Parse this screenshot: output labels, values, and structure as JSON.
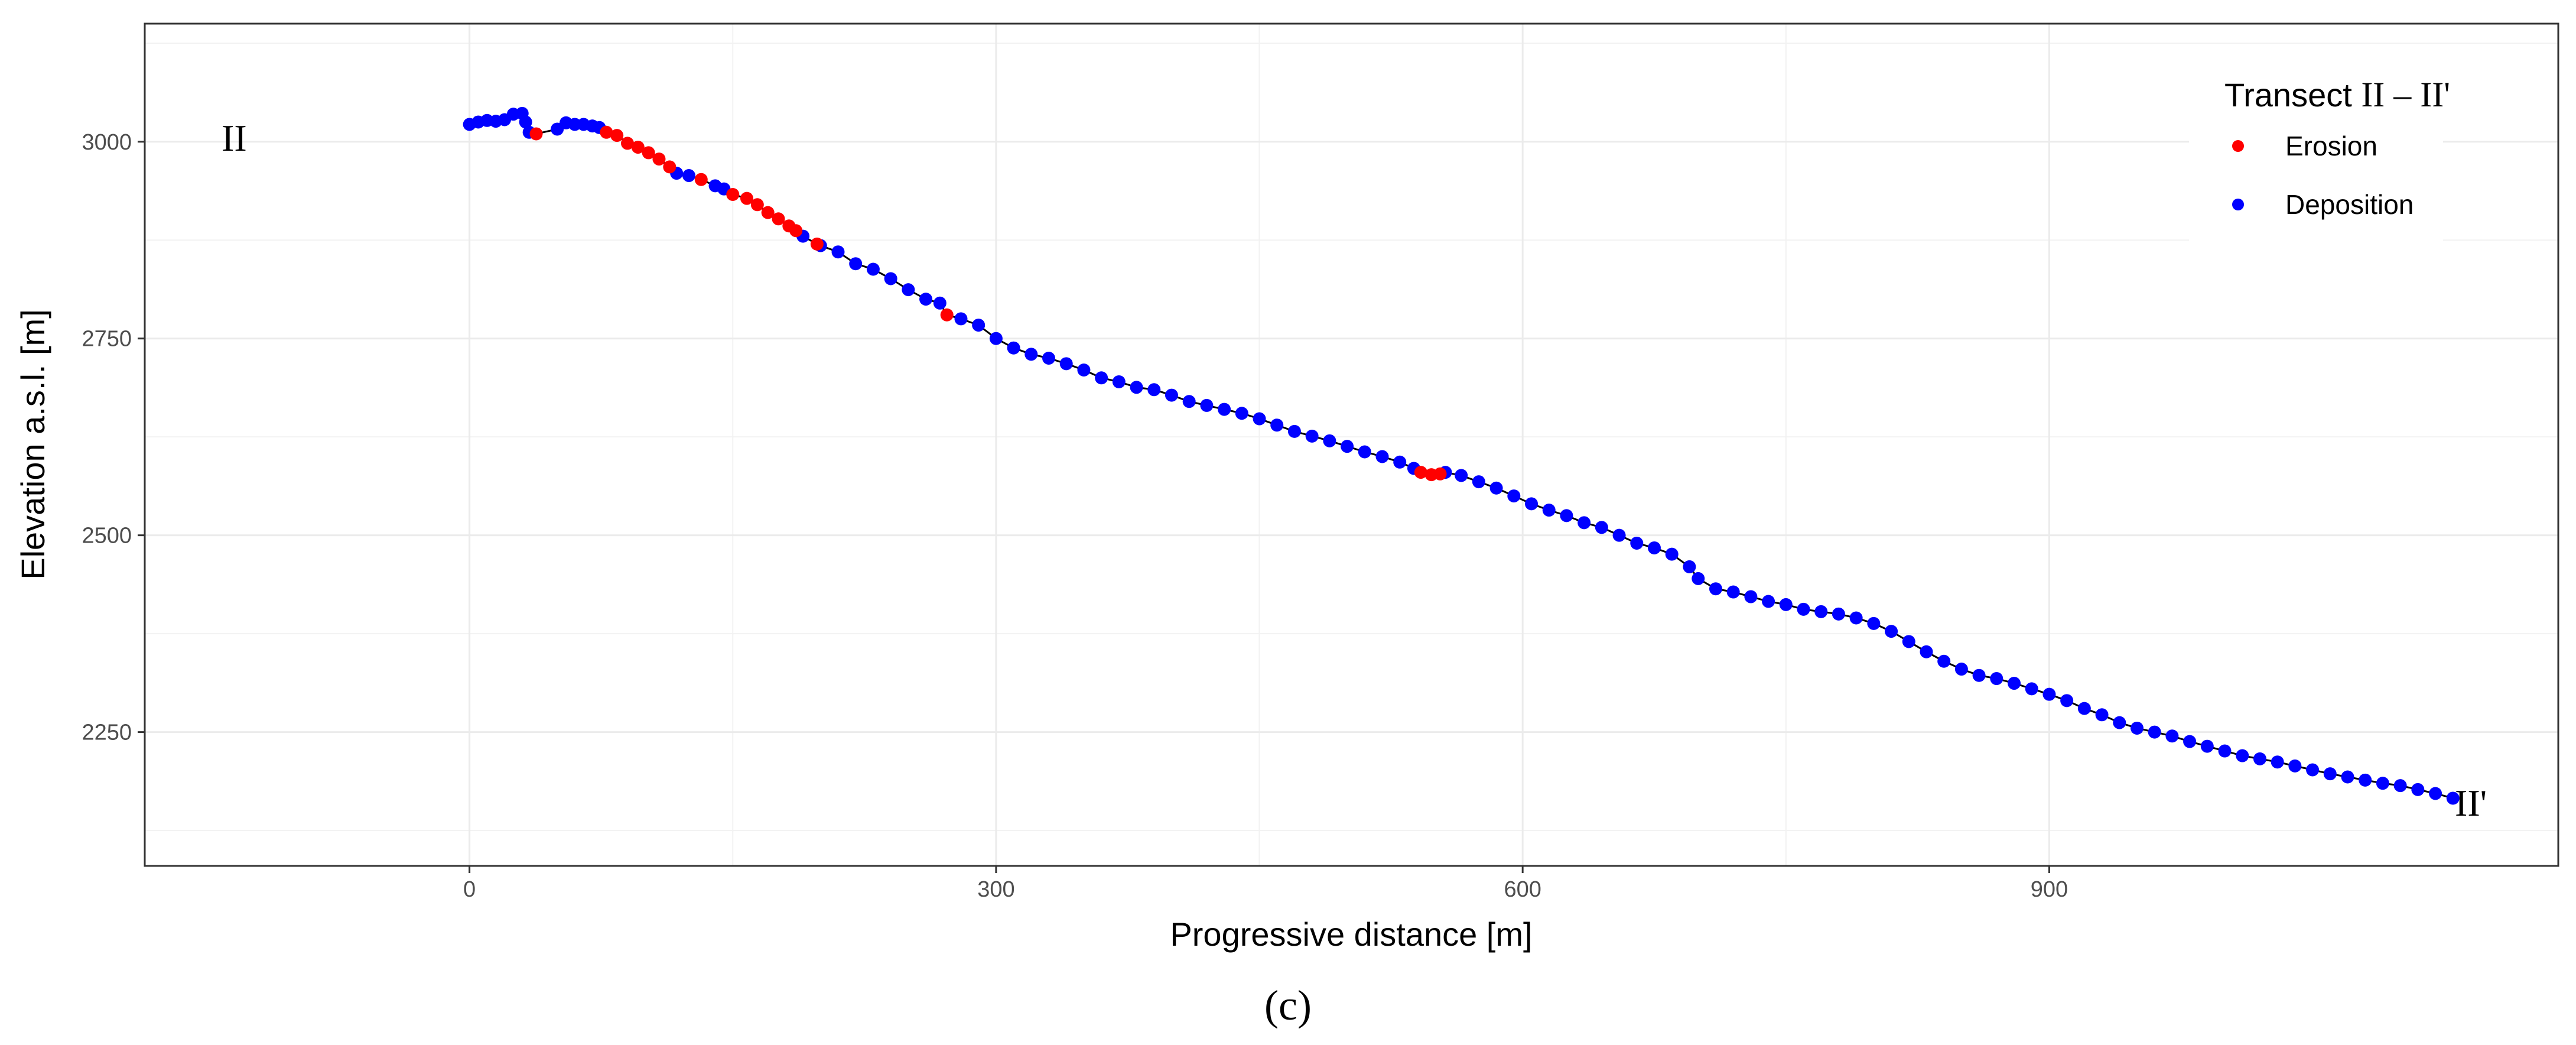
{
  "chart_data": {
    "type": "scatter",
    "xlabel": "Progressive distance [m]",
    "ylabel": "Elevation a.s.l. [m]",
    "xlim": [
      -185,
      1190
    ],
    "ylim": [
      2080,
      3150
    ],
    "xticks": [
      0,
      300,
      600,
      900
    ],
    "yticks": [
      2250,
      2500,
      2750,
      3000
    ],
    "x_tick_labels": [
      "0",
      "300",
      "600",
      "900"
    ],
    "y_tick_labels": [
      "2250",
      "2500",
      "2750",
      "3000"
    ],
    "grid": true,
    "legend": {
      "title_prefix": "Transect ",
      "title_roman": "II – II'",
      "position": "top-right",
      "entries": [
        {
          "label": "Erosion",
          "color": "#ff0000"
        },
        {
          "label": "Deposition",
          "color": "#0000ff"
        }
      ]
    },
    "start_label": "II",
    "end_label": "II'",
    "caption": "(c)",
    "colors": {
      "erosion": "#ff0000",
      "deposition": "#0000ff",
      "line": "#000000"
    },
    "series": [
      {
        "name": "Deposition",
        "color": "#0000ff",
        "points": [
          [
            0,
            3022
          ],
          [
            5,
            3025
          ],
          [
            10,
            3027
          ],
          [
            15,
            3026
          ],
          [
            20,
            3028
          ],
          [
            25,
            3035
          ],
          [
            30,
            3036
          ],
          [
            32,
            3025
          ],
          [
            34,
            3012
          ],
          [
            50,
            3016
          ],
          [
            55,
            3024
          ],
          [
            60,
            3022
          ],
          [
            65,
            3022
          ],
          [
            70,
            3020
          ],
          [
            74,
            3018
          ],
          [
            118,
            2960
          ],
          [
            125,
            2957
          ],
          [
            140,
            2944
          ],
          [
            145,
            2940
          ],
          [
            190,
            2880
          ],
          [
            200,
            2868
          ],
          [
            210,
            2860
          ],
          [
            220,
            2845
          ],
          [
            230,
            2838
          ],
          [
            240,
            2826
          ],
          [
            250,
            2812
          ],
          [
            260,
            2800
          ],
          [
            268,
            2795
          ],
          [
            280,
            2775
          ],
          [
            290,
            2767
          ],
          [
            300,
            2750
          ],
          [
            310,
            2738
          ],
          [
            320,
            2730
          ],
          [
            330,
            2725
          ],
          [
            340,
            2718
          ],
          [
            350,
            2710
          ],
          [
            360,
            2700
          ],
          [
            370,
            2695
          ],
          [
            380,
            2688
          ],
          [
            390,
            2685
          ],
          [
            400,
            2678
          ],
          [
            410,
            2670
          ],
          [
            420,
            2665
          ],
          [
            430,
            2660
          ],
          [
            440,
            2655
          ],
          [
            450,
            2648
          ],
          [
            460,
            2640
          ],
          [
            470,
            2632
          ],
          [
            480,
            2626
          ],
          [
            490,
            2620
          ],
          [
            500,
            2613
          ],
          [
            510,
            2606
          ],
          [
            520,
            2600
          ],
          [
            530,
            2593
          ],
          [
            538,
            2585
          ],
          [
            556,
            2580
          ],
          [
            565,
            2576
          ],
          [
            575,
            2568
          ],
          [
            585,
            2560
          ],
          [
            595,
            2550
          ],
          [
            605,
            2540
          ],
          [
            615,
            2532
          ],
          [
            625,
            2525
          ],
          [
            635,
            2516
          ],
          [
            645,
            2510
          ],
          [
            655,
            2500
          ],
          [
            665,
            2490
          ],
          [
            675,
            2484
          ],
          [
            685,
            2476
          ],
          [
            695,
            2460
          ],
          [
            700,
            2445
          ],
          [
            710,
            2432
          ],
          [
            720,
            2428
          ],
          [
            730,
            2422
          ],
          [
            740,
            2416
          ],
          [
            750,
            2412
          ],
          [
            760,
            2406
          ],
          [
            770,
            2403
          ],
          [
            780,
            2400
          ],
          [
            790,
            2395
          ],
          [
            800,
            2388
          ],
          [
            810,
            2378
          ],
          [
            820,
            2365
          ],
          [
            830,
            2352
          ],
          [
            840,
            2340
          ],
          [
            850,
            2330
          ],
          [
            860,
            2322
          ],
          [
            870,
            2318
          ],
          [
            880,
            2312
          ],
          [
            890,
            2305
          ],
          [
            900,
            2298
          ],
          [
            910,
            2290
          ],
          [
            920,
            2280
          ],
          [
            930,
            2272
          ],
          [
            940,
            2262
          ],
          [
            950,
            2255
          ],
          [
            960,
            2250
          ],
          [
            970,
            2245
          ],
          [
            980,
            2238
          ],
          [
            990,
            2232
          ],
          [
            1000,
            2226
          ],
          [
            1010,
            2220
          ],
          [
            1020,
            2216
          ],
          [
            1030,
            2212
          ],
          [
            1040,
            2207
          ],
          [
            1050,
            2202
          ],
          [
            1060,
            2197
          ],
          [
            1070,
            2193
          ],
          [
            1080,
            2189
          ],
          [
            1090,
            2185
          ],
          [
            1100,
            2182
          ],
          [
            1110,
            2177
          ],
          [
            1120,
            2172
          ],
          [
            1130,
            2166
          ]
        ]
      },
      {
        "name": "Erosion",
        "color": "#ff0000",
        "points": [
          [
            38,
            3010
          ],
          [
            78,
            3012
          ],
          [
            84,
            3008
          ],
          [
            90,
            2998
          ],
          [
            96,
            2993
          ],
          [
            102,
            2986
          ],
          [
            108,
            2978
          ],
          [
            114,
            2968
          ],
          [
            132,
            2952
          ],
          [
            150,
            2933
          ],
          [
            158,
            2928
          ],
          [
            164,
            2920
          ],
          [
            170,
            2910
          ],
          [
            176,
            2902
          ],
          [
            182,
            2893
          ],
          [
            186,
            2887
          ],
          [
            198,
            2870
          ],
          [
            272,
            2780
          ],
          [
            542,
            2580
          ],
          [
            548,
            2577
          ],
          [
            553,
            2578
          ]
        ]
      }
    ]
  }
}
